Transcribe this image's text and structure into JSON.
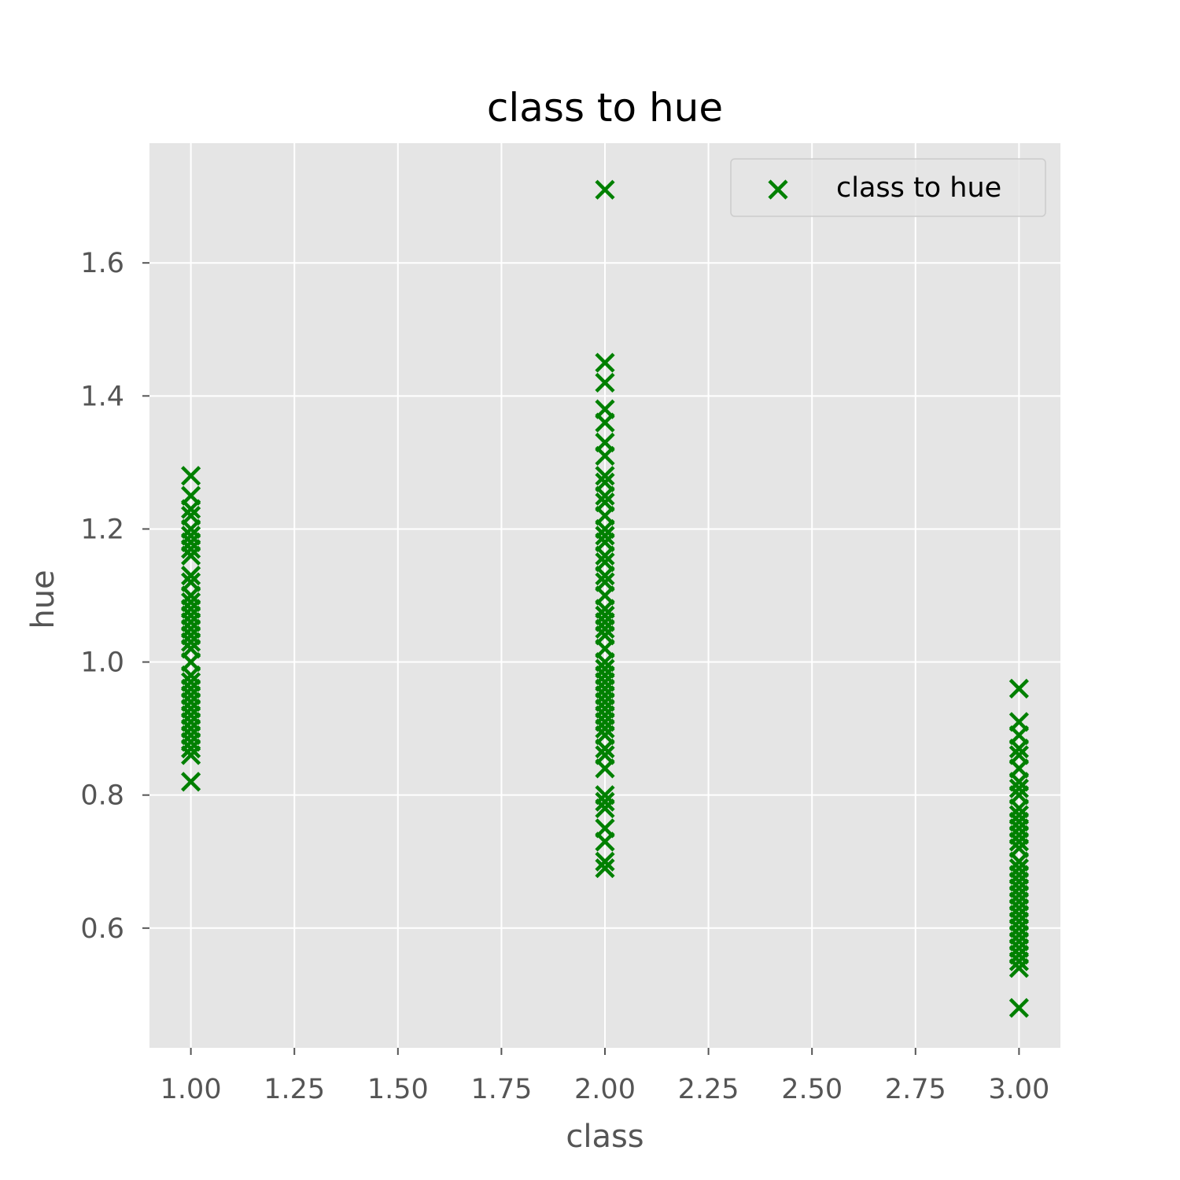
{
  "chart_data": {
    "type": "scatter",
    "title": "class to hue",
    "xlabel": "class",
    "ylabel": "hue",
    "xlim": [
      0.9,
      3.1
    ],
    "ylim": [
      0.42,
      1.78
    ],
    "xticks": [
      1.0,
      1.25,
      1.5,
      1.75,
      2.0,
      2.25,
      2.5,
      2.75,
      3.0
    ],
    "xtick_labels": [
      "1.00",
      "1.25",
      "1.50",
      "1.75",
      "2.00",
      "2.25",
      "2.50",
      "2.75",
      "3.00"
    ],
    "yticks": [
      0.6,
      0.8,
      1.0,
      1.2,
      1.4,
      1.6
    ],
    "ytick_labels": [
      "0.6",
      "0.8",
      "1.0",
      "1.2",
      "1.4",
      "1.6"
    ],
    "grid": true,
    "legend_position": "top-right",
    "marker": "x",
    "colors": {
      "series": "#008000",
      "plot_bg": "#e5e5e5",
      "grid": "#ffffff",
      "text": "#555555"
    },
    "series": [
      {
        "name": "class to hue",
        "points": [
          [
            1,
            1.28
          ],
          [
            1,
            1.25
          ],
          [
            1,
            1.23
          ],
          [
            1,
            1.22
          ],
          [
            1,
            1.2
          ],
          [
            1,
            1.19
          ],
          [
            1,
            1.18
          ],
          [
            1,
            1.17
          ],
          [
            1,
            1.16
          ],
          [
            1,
            1.13
          ],
          [
            1,
            1.12
          ],
          [
            1,
            1.1
          ],
          [
            1,
            1.09
          ],
          [
            1,
            1.08
          ],
          [
            1,
            1.07
          ],
          [
            1,
            1.06
          ],
          [
            1,
            1.05
          ],
          [
            1,
            1.04
          ],
          [
            1,
            1.03
          ],
          [
            1,
            1.02
          ],
          [
            1,
            1.0
          ],
          [
            1,
            0.98
          ],
          [
            1,
            0.97
          ],
          [
            1,
            0.96
          ],
          [
            1,
            0.95
          ],
          [
            1,
            0.94
          ],
          [
            1,
            0.93
          ],
          [
            1,
            0.92
          ],
          [
            1,
            0.91
          ],
          [
            1,
            0.9
          ],
          [
            1,
            0.89
          ],
          [
            1,
            0.88
          ],
          [
            1,
            0.87
          ],
          [
            1,
            0.86
          ],
          [
            1,
            0.82
          ],
          [
            2,
            1.71
          ],
          [
            2,
            1.45
          ],
          [
            2,
            1.42
          ],
          [
            2,
            1.38
          ],
          [
            2,
            1.36
          ],
          [
            2,
            1.33
          ],
          [
            2,
            1.31
          ],
          [
            2,
            1.28
          ],
          [
            2,
            1.27
          ],
          [
            2,
            1.25
          ],
          [
            2,
            1.24
          ],
          [
            2,
            1.22
          ],
          [
            2,
            1.2
          ],
          [
            2,
            1.19
          ],
          [
            2,
            1.18
          ],
          [
            2,
            1.16
          ],
          [
            2,
            1.15
          ],
          [
            2,
            1.13
          ],
          [
            2,
            1.12
          ],
          [
            2,
            1.1
          ],
          [
            2,
            1.08
          ],
          [
            2,
            1.07
          ],
          [
            2,
            1.06
          ],
          [
            2,
            1.05
          ],
          [
            2,
            1.04
          ],
          [
            2,
            1.02
          ],
          [
            2,
            1.0
          ],
          [
            2,
            0.99
          ],
          [
            2,
            0.98
          ],
          [
            2,
            0.97
          ],
          [
            2,
            0.96
          ],
          [
            2,
            0.95
          ],
          [
            2,
            0.94
          ],
          [
            2,
            0.93
          ],
          [
            2,
            0.92
          ],
          [
            2,
            0.91
          ],
          [
            2,
            0.9
          ],
          [
            2,
            0.89
          ],
          [
            2,
            0.87
          ],
          [
            2,
            0.86
          ],
          [
            2,
            0.84
          ],
          [
            2,
            0.8
          ],
          [
            2,
            0.79
          ],
          [
            2,
            0.78
          ],
          [
            2,
            0.75
          ],
          [
            2,
            0.73
          ],
          [
            2,
            0.7
          ],
          [
            2,
            0.69
          ],
          [
            3,
            0.96
          ],
          [
            3,
            0.91
          ],
          [
            3,
            0.89
          ],
          [
            3,
            0.87
          ],
          [
            3,
            0.86
          ],
          [
            3,
            0.84
          ],
          [
            3,
            0.82
          ],
          [
            3,
            0.81
          ],
          [
            3,
            0.8
          ],
          [
            3,
            0.78
          ],
          [
            3,
            0.77
          ],
          [
            3,
            0.76
          ],
          [
            3,
            0.75
          ],
          [
            3,
            0.74
          ],
          [
            3,
            0.73
          ],
          [
            3,
            0.72
          ],
          [
            3,
            0.7
          ],
          [
            3,
            0.69
          ],
          [
            3,
            0.68
          ],
          [
            3,
            0.67
          ],
          [
            3,
            0.66
          ],
          [
            3,
            0.65
          ],
          [
            3,
            0.64
          ],
          [
            3,
            0.63
          ],
          [
            3,
            0.62
          ],
          [
            3,
            0.61
          ],
          [
            3,
            0.6
          ],
          [
            3,
            0.59
          ],
          [
            3,
            0.58
          ],
          [
            3,
            0.57
          ],
          [
            3,
            0.56
          ],
          [
            3,
            0.55
          ],
          [
            3,
            0.54
          ],
          [
            3,
            0.48
          ]
        ]
      }
    ]
  }
}
